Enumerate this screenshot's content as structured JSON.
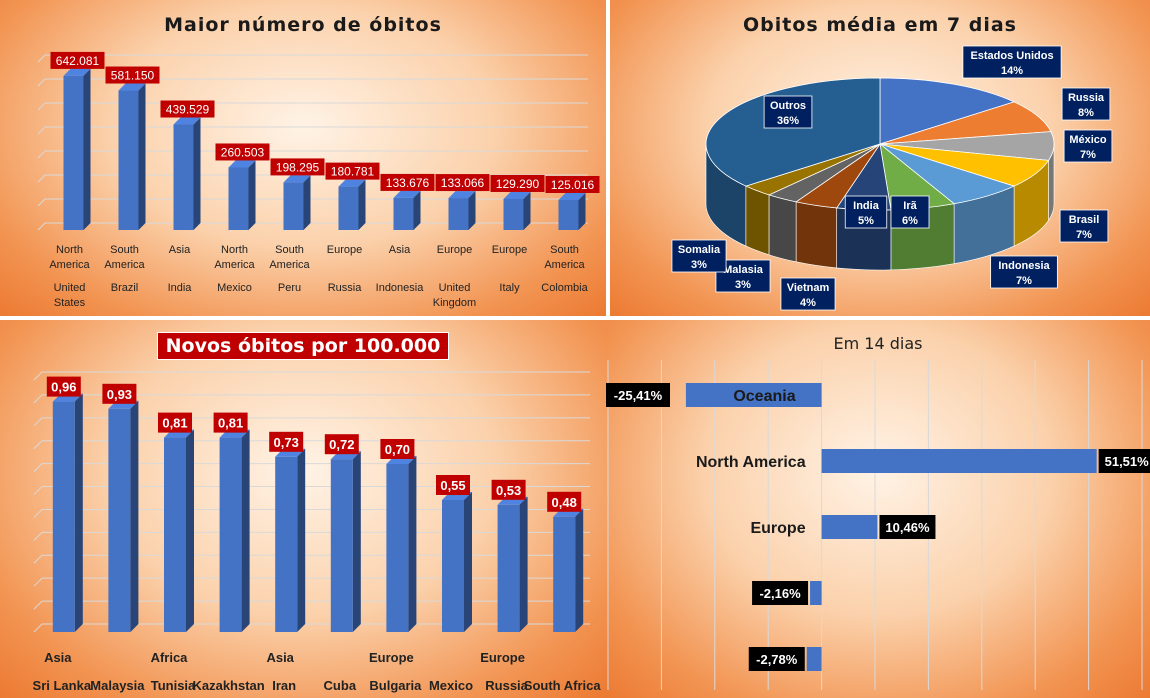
{
  "chart_data": [
    {
      "type": "bar",
      "title": "Maior número de óbitos",
      "categories": [
        {
          "group": "North America",
          "name": "United States"
        },
        {
          "group": "South America",
          "name": "Brazil"
        },
        {
          "group": "Asia",
          "name": "India"
        },
        {
          "group": "North America",
          "name": "Mexico"
        },
        {
          "group": "South America",
          "name": "Peru"
        },
        {
          "group": "Europe",
          "name": "Russia"
        },
        {
          "group": "Asia",
          "name": "Indonesia"
        },
        {
          "group": "Europe",
          "name": "United Kingdom"
        },
        {
          "group": "Europe",
          "name": "Italy"
        },
        {
          "group": "South America",
          "name": "Colombia"
        }
      ],
      "values": [
        642081,
        581150,
        439529,
        260503,
        198295,
        180781,
        133676,
        133066,
        129290,
        125016
      ],
      "value_labels": [
        "642.081",
        "581.150",
        "439.529",
        "260.503",
        "198.295",
        "180.781",
        "133.676",
        "133.066",
        "129.290",
        "125.016"
      ],
      "ylim": [
        0,
        700000
      ],
      "grid": true,
      "bar_color": "#4472c4",
      "label_color": "#c00000"
    },
    {
      "type": "pie",
      "title": "Obitos média em 7 dias",
      "slices": [
        {
          "label": "Estados Unidos",
          "pct_label": "14%",
          "value": 14,
          "color": "#4472c4"
        },
        {
          "label": "Russia",
          "pct_label": "8%",
          "value": 8,
          "color": "#ed7d31"
        },
        {
          "label": "México",
          "pct_label": "7%",
          "value": 7,
          "color": "#a5a5a5"
        },
        {
          "label": "Brasil",
          "pct_label": "7%",
          "value": 7,
          "color": "#ffc000"
        },
        {
          "label": "Indonesia",
          "pct_label": "7%",
          "value": 7,
          "color": "#5b9bd5"
        },
        {
          "label": "Irã",
          "pct_label": "6%",
          "value": 6,
          "color": "#70ad47"
        },
        {
          "label": "India",
          "pct_label": "5%",
          "value": 5,
          "color": "#264478"
        },
        {
          "label": "Vietnam",
          "pct_label": "4%",
          "value": 4,
          "color": "#9e480e"
        },
        {
          "label": "Malasia",
          "pct_label": "3%",
          "value": 3,
          "color": "#636363"
        },
        {
          "label": "Somalia",
          "pct_label": "3%",
          "value": 3,
          "color": "#997300"
        },
        {
          "label": "Outros",
          "pct_label": "36%",
          "value": 36,
          "color": "#255e91"
        }
      ],
      "label_bg": "#002060"
    },
    {
      "type": "bar",
      "title": "Novos óbitos por 100.000",
      "categories": [
        {
          "group": "Asia",
          "name": "Sri Lanka"
        },
        {
          "group": "",
          "name": "Malaysia"
        },
        {
          "group": "Africa",
          "name": "Tunisia"
        },
        {
          "group": "",
          "name": "Kazakhstan"
        },
        {
          "group": "Asia",
          "name": "Iran"
        },
        {
          "group": "",
          "name": "Cuba"
        },
        {
          "group": "Europe",
          "name": "Bulgaria"
        },
        {
          "group": "",
          "name": "Mexico"
        },
        {
          "group": "Europe",
          "name": "Russia"
        },
        {
          "group": "",
          "name": "South Africa"
        }
      ],
      "values": [
        0.96,
        0.93,
        0.81,
        0.81,
        0.73,
        0.72,
        0.7,
        0.55,
        0.53,
        0.48
      ],
      "value_labels": [
        "0,96",
        "0,93",
        "0,81",
        "0,81",
        "0,73",
        "0,72",
        "0,70",
        "0,55",
        "0,53",
        "0,48"
      ],
      "ylim": [
        0,
        1.05
      ],
      "grid": true,
      "bar_color": "#4472c4",
      "label_color": "#c00000"
    },
    {
      "type": "bar",
      "orientation": "horizontal",
      "title": "Em 14 dias",
      "categories": [
        "Oceania",
        "North America",
        "Europe",
        "",
        ""
      ],
      "values": [
        -25.41,
        51.51,
        10.46,
        -2.16,
        -2.78
      ],
      "value_labels": [
        "-25,41%",
        "51,51%",
        "10,46%",
        "-2,16%",
        "-2,78%"
      ],
      "xlim": [
        -40,
        60
      ],
      "grid": true,
      "bar_color": "#4472c4",
      "label_color": "#000000"
    }
  ]
}
